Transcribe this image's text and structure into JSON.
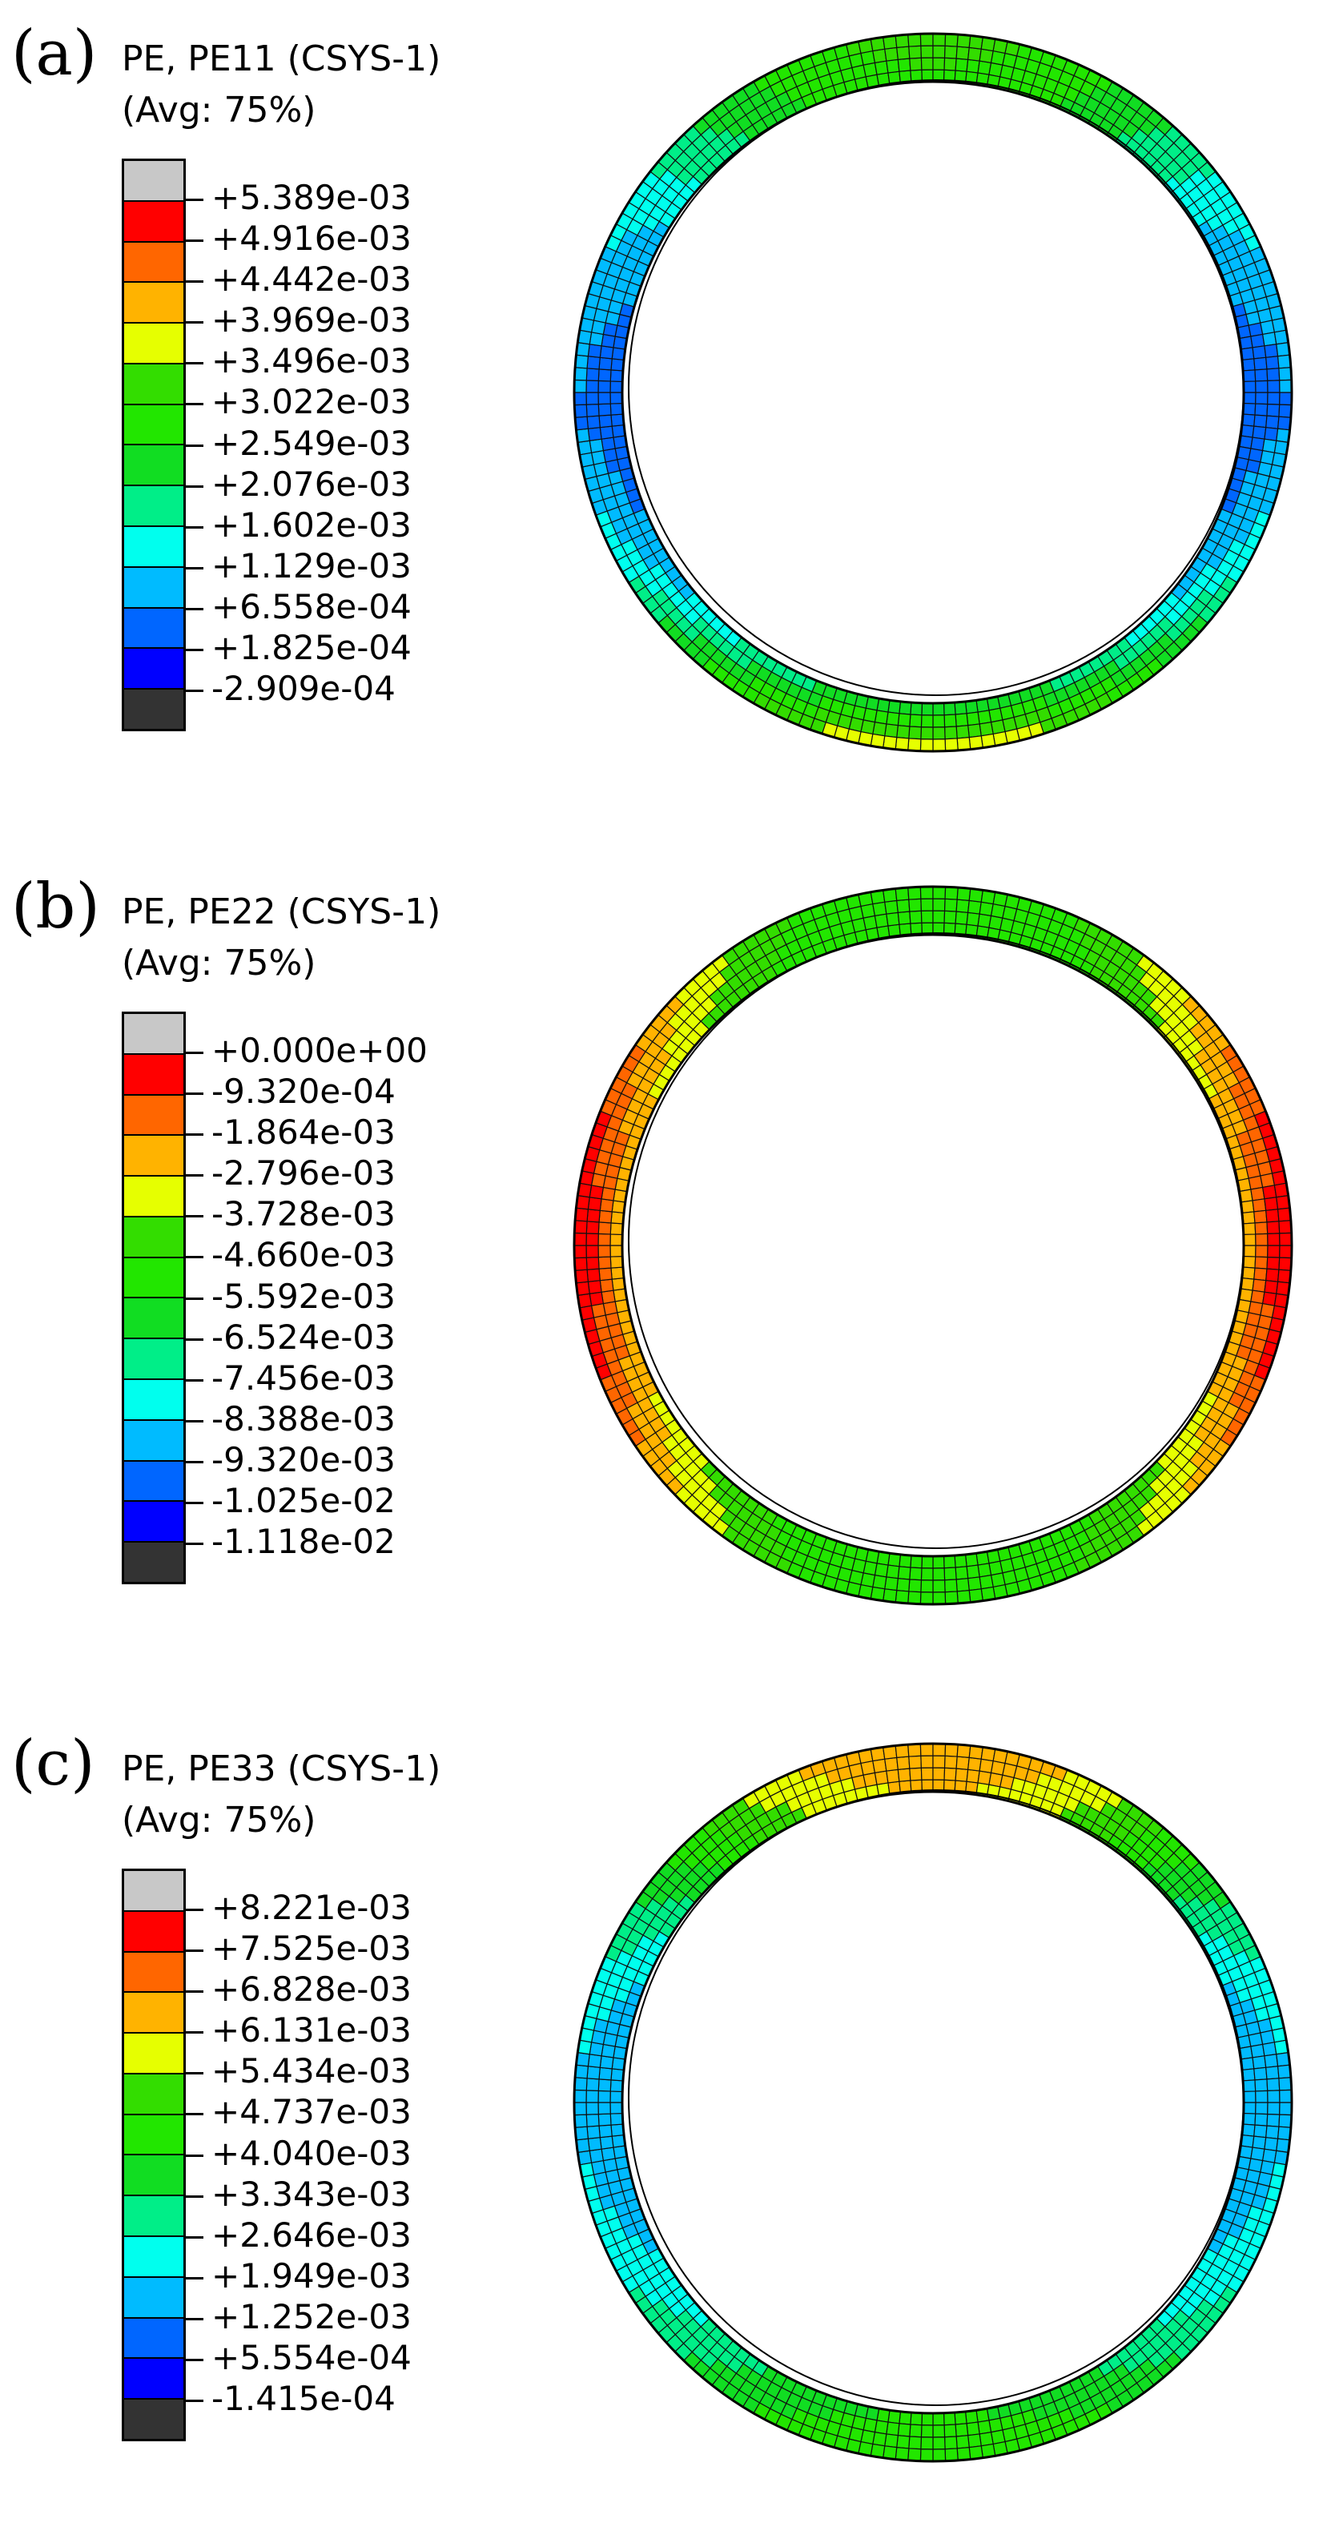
{
  "panels": [
    {
      "label": "(a)",
      "title_line1": "PE, PE11 (CSYS-1)",
      "title_line2": "(Avg: 75%)",
      "legend_values": [
        "+5.389e-03",
        "+4.916e-03",
        "+4.442e-03",
        "+3.969e-03",
        "+3.496e-03",
        "+3.022e-03",
        "+2.549e-03",
        "+2.076e-03",
        "+1.602e-03",
        "+1.129e-03",
        "+6.558e-04",
        "+1.825e-04",
        "-2.909e-04"
      ],
      "ring_pattern": "hoop"
    },
    {
      "label": "(b)",
      "title_line1": "PE, PE22 (CSYS-1)",
      "title_line2": "(Avg: 75%)",
      "legend_values": [
        "+0.000e+00",
        "-9.320e-04",
        "-1.864e-03",
        "-2.796e-03",
        "-3.728e-03",
        "-4.660e-03",
        "-5.592e-03",
        "-6.524e-03",
        "-7.456e-03",
        "-8.388e-03",
        "-9.320e-03",
        "-1.025e-02",
        "-1.118e-02"
      ],
      "ring_pattern": "radial"
    },
    {
      "label": "(c)",
      "title_line1": "PE, PE33 (CSYS-1)",
      "title_line2": "(Avg: 75%)",
      "legend_values": [
        "+8.221e-03",
        "+7.525e-03",
        "+6.828e-03",
        "+6.131e-03",
        "+5.434e-03",
        "+4.737e-03",
        "+4.040e-03",
        "+3.343e-03",
        "+2.646e-03",
        "+1.949e-03",
        "+1.252e-03",
        "+5.554e-04",
        "-1.415e-04"
      ],
      "ring_pattern": "axial"
    }
  ],
  "colormap": [
    "#c8c8c8",
    "#ff0000",
    "#ff6600",
    "#ffb300",
    "#e6ff00",
    "#33dd00",
    "#22e600",
    "#11dd22",
    "#00ee88",
    "#00ffee",
    "#00bbff",
    "#0066ff",
    "#0000ff",
    "#333333"
  ]
}
